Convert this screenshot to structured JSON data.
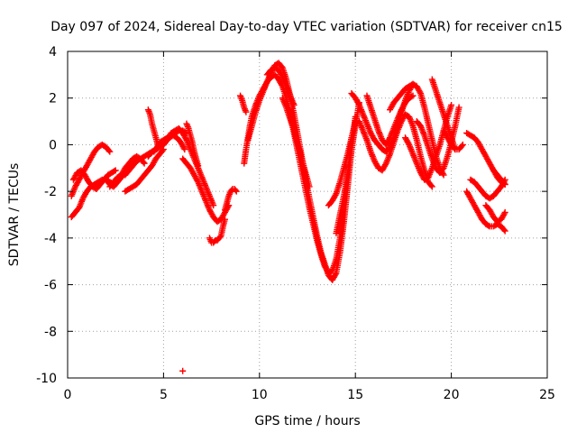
{
  "chart_data": {
    "type": "scatter",
    "title": "Day 097 of 2024, Sidereal Day-to-day VTEC variation (SDTVAR) for receiver cn15",
    "xlabel": "GPS time / hours",
    "ylabel": "SDTVAR / TECUs",
    "xlim": [
      0,
      25
    ],
    "ylim": [
      -10,
      4
    ],
    "xticks": [
      0,
      5,
      10,
      15,
      20,
      25
    ],
    "yticks": [
      -10,
      -8,
      -6,
      -4,
      -2,
      0,
      2,
      4
    ],
    "xtick_labels": [
      "0",
      "5",
      "10",
      "15",
      "20",
      "25"
    ],
    "ytick_labels": [
      "-10",
      "-8",
      "-6",
      "-4",
      "-2",
      "0",
      "2",
      "4"
    ],
    "grid": true,
    "marker": "plus",
    "color": "#ff0000",
    "series": [
      {
        "name": "t0",
        "x": [
          0.2,
          0.4,
          0.6,
          0.8,
          1.0,
          1.2,
          1.4,
          1.6,
          1.8,
          2.0,
          2.2
        ],
        "y": [
          -2.2,
          -1.8,
          -1.5,
          -1.2,
          -0.9,
          -0.6,
          -0.3,
          -0.1,
          0.0,
          -0.1,
          -0.3
        ]
      },
      {
        "name": "t1",
        "x": [
          0.2,
          0.4,
          0.6,
          0.8,
          1.0,
          1.2,
          1.4,
          1.6,
          1.8,
          2.0,
          2.2,
          2.4,
          2.6,
          2.8,
          3.0
        ],
        "y": [
          -3.1,
          -2.9,
          -2.7,
          -2.3,
          -2.0,
          -1.8,
          -1.7,
          -1.6,
          -1.5,
          -1.5,
          -1.6,
          -1.7,
          -1.6,
          -1.4,
          -1.2
        ]
      },
      {
        "name": "t2",
        "x": [
          0.3,
          0.5,
          0.7,
          0.9,
          1.1,
          1.3,
          1.5,
          1.7,
          1.9,
          2.1,
          2.3,
          2.5
        ],
        "y": [
          -1.5,
          -1.2,
          -1.1,
          -1.3,
          -1.6,
          -1.8,
          -1.9,
          -1.7,
          -1.5,
          -1.3,
          -1.2,
          -1.1
        ]
      },
      {
        "name": "t3",
        "x": [
          2.0,
          2.2,
          2.4,
          2.6,
          2.8,
          3.0,
          3.2,
          3.4,
          3.6,
          3.8,
          4.0
        ],
        "y": [
          -1.5,
          -1.7,
          -1.8,
          -1.6,
          -1.3,
          -1.0,
          -0.8,
          -0.6,
          -0.5,
          -0.6,
          -0.8
        ]
      },
      {
        "name": "t4",
        "x": [
          2.2,
          2.4,
          2.6,
          2.8,
          3.0,
          3.2,
          3.4,
          3.6,
          3.8,
          4.0,
          4.2,
          4.4,
          4.6,
          4.8,
          5.0
        ],
        "y": [
          -1.8,
          -1.6,
          -1.4,
          -1.3,
          -1.3,
          -1.1,
          -0.9,
          -0.7,
          -0.6,
          -0.5,
          -0.4,
          -0.3,
          -0.2,
          -0.1,
          0.0
        ]
      },
      {
        "name": "t5",
        "x": [
          3.0,
          3.2,
          3.4,
          3.6,
          3.8,
          4.0,
          4.2,
          4.4,
          4.6,
          4.8,
          5.0
        ],
        "y": [
          -2.0,
          -1.9,
          -1.8,
          -1.7,
          -1.5,
          -1.3,
          -1.1,
          -0.9,
          -0.6,
          -0.4,
          -0.2
        ]
      },
      {
        "name": "t6",
        "x": [
          4.2,
          4.4,
          4.6,
          4.8,
          5.0,
          5.2,
          5.4,
          5.6,
          5.8,
          6.0,
          6.2
        ],
        "y": [
          -0.5,
          -0.3,
          -0.2,
          0.1,
          0.2,
          0.3,
          0.4,
          0.5,
          0.6,
          0.6,
          0.5
        ]
      },
      {
        "name": "t7",
        "x": [
          4.2,
          4.3,
          4.4,
          4.5,
          4.6,
          4.7
        ],
        "y": [
          1.5,
          1.3,
          0.9,
          0.6,
          0.3,
          0.0
        ]
      },
      {
        "name": "t8",
        "x": [
          4.5,
          4.7,
          4.9,
          5.1,
          5.3,
          5.5,
          5.7,
          5.9,
          6.1
        ],
        "y": [
          -0.3,
          -0.1,
          0.1,
          0.2,
          0.3,
          0.4,
          0.3,
          0.1,
          -0.2
        ]
      },
      {
        "name": "t9",
        "x": [
          5.0,
          5.2,
          5.4,
          5.6,
          5.8,
          6.0,
          6.2,
          6.4,
          6.6,
          6.8,
          7.0,
          7.2,
          7.4,
          7.6
        ],
        "y": [
          0.0,
          0.2,
          0.5,
          0.6,
          0.7,
          0.5,
          0.2,
          -0.2,
          -0.6,
          -1.0,
          -1.4,
          -1.8,
          -2.2,
          -2.6
        ]
      },
      {
        "name": "t10",
        "x": [
          6.2,
          6.3,
          6.4,
          6.5,
          6.6,
          6.7,
          6.8
        ],
        "y": [
          0.9,
          0.7,
          0.4,
          0.1,
          -0.3,
          -0.6,
          -0.9
        ]
      },
      {
        "name": "t11",
        "x": [
          6.0,
          6.2,
          6.4,
          6.6,
          6.8,
          7.0,
          7.2,
          7.4,
          7.6,
          7.8,
          8.0,
          8.2,
          8.4
        ],
        "y": [
          -0.6,
          -0.8,
          -1.0,
          -1.3,
          -1.6,
          -2.0,
          -2.4,
          -2.8,
          -3.1,
          -3.3,
          -3.2,
          -2.9,
          -2.6
        ]
      },
      {
        "name": "t12",
        "x": [
          7.4,
          7.5,
          7.6,
          7.7,
          7.8,
          7.9,
          8.0,
          8.1,
          8.2
        ],
        "y": [
          -4.0,
          -4.2,
          -4.2,
          -4.1,
          -4.1,
          -4.0,
          -3.9,
          -3.5,
          -3.2
        ]
      },
      {
        "name": "t13",
        "x": [
          8.2,
          8.3,
          8.4,
          8.5,
          8.6,
          8.7,
          8.8
        ],
        "y": [
          -2.8,
          -2.5,
          -2.2,
          -2.0,
          -1.9,
          -1.9,
          -2.0
        ]
      },
      {
        "name": "t14",
        "x": [
          6.0
        ],
        "y": [
          -9.7
        ]
      },
      {
        "name": "t15",
        "x": [
          9.2,
          9.3,
          9.4,
          9.5,
          9.6,
          9.8,
          10.0,
          10.2,
          10.4,
          10.6,
          10.8,
          11.0,
          11.2,
          11.4,
          11.6,
          11.8,
          12.0,
          12.2,
          12.4,
          12.6,
          12.8,
          13.0,
          13.2,
          13.4,
          13.6,
          13.8,
          14.0,
          14.2,
          14.4,
          14.6,
          14.8
        ],
        "y": [
          -0.8,
          -0.2,
          0.3,
          0.8,
          1.2,
          1.7,
          2.1,
          2.4,
          2.7,
          2.9,
          3.0,
          2.8,
          2.5,
          2.0,
          1.3,
          0.5,
          -0.3,
          -1.1,
          -1.9,
          -2.7,
          -3.4,
          -4.1,
          -4.7,
          -5.2,
          -5.5,
          -5.4,
          -4.9,
          -4.0,
          -2.8,
          -1.3,
          0.3
        ]
      },
      {
        "name": "t16",
        "x": [
          9.4,
          9.6,
          9.8,
          10.0,
          10.2,
          10.4,
          10.6,
          10.8,
          11.0,
          11.2,
          11.4,
          11.6,
          11.8,
          12.0,
          12.2,
          12.4,
          12.6,
          12.8,
          13.0,
          13.2,
          13.4,
          13.6,
          13.8,
          14.0,
          14.2,
          14.4,
          14.6,
          14.8,
          15.0
        ],
        "y": [
          0.2,
          0.8,
          1.4,
          1.9,
          2.3,
          2.7,
          3.1,
          3.4,
          3.5,
          3.3,
          2.8,
          2.1,
          1.3,
          0.4,
          -0.5,
          -1.4,
          -2.3,
          -3.1,
          -3.9,
          -4.6,
          -5.1,
          -5.6,
          -5.8,
          -5.5,
          -4.6,
          -3.3,
          -1.8,
          -0.2,
          1.2
        ]
      },
      {
        "name": "t17",
        "x": [
          9.0,
          9.1,
          9.2,
          9.3
        ],
        "y": [
          2.1,
          1.9,
          1.6,
          1.4
        ]
      },
      {
        "name": "t18",
        "x": [
          10.4,
          10.6,
          10.8,
          11.0,
          11.2,
          11.4,
          11.6,
          11.8
        ],
        "y": [
          3.0,
          3.2,
          3.3,
          3.2,
          2.9,
          2.5,
          2.1,
          1.7
        ]
      },
      {
        "name": "t19",
        "x": [
          11.2,
          11.4,
          11.6,
          11.8,
          12.0,
          12.2,
          12.4,
          12.6
        ],
        "y": [
          2.0,
          1.6,
          1.1,
          0.6,
          0.0,
          -0.6,
          -1.2,
          -1.8
        ]
      },
      {
        "name": "t20",
        "x": [
          11.6,
          11.7,
          11.8,
          11.9,
          12.0
        ],
        "y": [
          1.5,
          1.1,
          0.8,
          0.4,
          0.0
        ]
      },
      {
        "name": "t21",
        "x": [
          13.6,
          13.8,
          14.0,
          14.2,
          14.4,
          14.6,
          14.8,
          15.0
        ],
        "y": [
          -2.6,
          -2.4,
          -2.1,
          -1.6,
          -1.0,
          -0.4,
          0.3,
          1.0
        ]
      },
      {
        "name": "t22",
        "x": [
          14.0,
          14.2,
          14.4,
          14.6,
          14.8,
          15.0,
          15.2
        ],
        "y": [
          -3.8,
          -3.0,
          -2.2,
          -1.2,
          -0.2,
          0.8,
          1.8
        ]
      },
      {
        "name": "t23",
        "x": [
          14.8,
          15.0,
          15.2,
          15.4,
          15.6,
          15.8,
          16.0,
          16.2,
          16.4,
          16.6,
          16.8,
          17.0,
          17.2,
          17.4,
          17.6,
          17.8,
          18.0
        ],
        "y": [
          2.2,
          2.0,
          1.7,
          1.3,
          0.9,
          0.5,
          0.2,
          0.0,
          -0.2,
          -0.3,
          -0.1,
          0.3,
          0.8,
          1.4,
          1.9,
          2.3,
          2.6
        ]
      },
      {
        "name": "t24",
        "x": [
          15.2,
          15.4,
          15.6,
          15.8,
          16.0,
          16.2,
          16.4,
          16.6,
          16.8,
          17.0,
          17.2,
          17.4,
          17.6,
          17.8,
          18.0,
          18.2,
          18.4,
          18.6,
          18.8,
          19.0
        ],
        "y": [
          1.0,
          0.6,
          0.2,
          -0.3,
          -0.7,
          -1.0,
          -1.1,
          -0.8,
          -0.4,
          0.1,
          0.6,
          1.0,
          1.3,
          1.2,
          0.8,
          0.2,
          -0.5,
          -1.1,
          -1.6,
          -1.8
        ]
      },
      {
        "name": "t25",
        "x": [
          15.6,
          15.8,
          16.0,
          16.2,
          16.4,
          16.6,
          16.8,
          17.0,
          17.2,
          17.4,
          17.6,
          17.8,
          18.0
        ],
        "y": [
          2.1,
          1.6,
          1.1,
          0.6,
          0.2,
          0.0,
          0.3,
          0.7,
          1.1,
          1.5,
          1.8,
          2.0,
          2.1
        ]
      },
      {
        "name": "t26",
        "x": [
          16.8,
          17.0,
          17.2,
          17.4,
          17.6,
          17.8,
          18.0,
          18.2,
          18.4,
          18.6,
          18.8,
          19.0,
          19.2,
          19.4,
          19.6
        ],
        "y": [
          1.5,
          1.8,
          2.0,
          2.2,
          2.4,
          2.5,
          2.6,
          2.5,
          2.2,
          1.6,
          0.9,
          0.2,
          -0.5,
          -1.0,
          -1.3
        ]
      },
      {
        "name": "t27",
        "x": [
          17.6,
          17.8,
          18.0,
          18.2,
          18.4,
          18.6,
          18.8,
          19.0,
          19.2,
          19.4,
          19.6,
          19.8,
          20.0
        ],
        "y": [
          0.3,
          0.0,
          -0.4,
          -0.8,
          -1.2,
          -1.5,
          -1.4,
          -1.0,
          -0.5,
          0.0,
          0.6,
          1.2,
          1.7
        ]
      },
      {
        "name": "t28",
        "x": [
          18.2,
          18.4,
          18.6,
          18.8,
          19.0,
          19.2,
          19.4,
          19.6,
          19.8,
          20.0,
          20.2,
          20.4
        ],
        "y": [
          1.0,
          0.8,
          0.4,
          -0.1,
          -0.6,
          -1.0,
          -1.2,
          -1.0,
          -0.5,
          0.1,
          0.8,
          1.6
        ]
      },
      {
        "name": "t29",
        "x": [
          19.0,
          19.2,
          19.4,
          19.6,
          19.8,
          20.0,
          20.2
        ],
        "y": [
          2.8,
          2.3,
          1.8,
          1.3,
          0.8,
          0.3,
          -0.2
        ]
      },
      {
        "name": "t30",
        "x": [
          19.6,
          19.8,
          20.0,
          20.2,
          20.4,
          20.6
        ],
        "y": [
          0.6,
          0.3,
          0.0,
          -0.2,
          -0.2,
          0.0
        ]
      },
      {
        "name": "t31",
        "x": [
          20.8,
          21.0,
          21.2,
          21.4,
          21.6,
          21.8,
          22.0,
          22.2,
          22.4,
          22.6,
          22.8
        ],
        "y": [
          -2.0,
          -2.3,
          -2.6,
          -2.9,
          -3.2,
          -3.4,
          -3.5,
          -3.5,
          -3.4,
          -3.5,
          -3.7
        ]
      },
      {
        "name": "t32",
        "x": [
          20.8,
          21.0,
          21.2,
          21.4,
          21.6,
          21.8,
          22.0,
          22.2,
          22.4,
          22.6,
          22.8
        ],
        "y": [
          0.5,
          0.4,
          0.3,
          0.1,
          -0.2,
          -0.5,
          -0.8,
          -1.1,
          -1.4,
          -1.6,
          -1.7
        ]
      },
      {
        "name": "t33",
        "x": [
          21.0,
          21.2,
          21.4,
          21.6,
          21.8,
          22.0,
          22.2,
          22.4,
          22.6,
          22.8
        ],
        "y": [
          -1.5,
          -1.6,
          -1.8,
          -2.0,
          -2.2,
          -2.3,
          -2.2,
          -2.0,
          -1.8,
          -1.5
        ]
      },
      {
        "name": "t34",
        "x": [
          21.8,
          22.0,
          22.2,
          22.4,
          22.6,
          22.8
        ],
        "y": [
          -2.6,
          -2.8,
          -3.1,
          -3.3,
          -3.2,
          -2.9
        ]
      },
      {
        "name": "t35",
        "x": [
          22.2,
          22.4,
          22.6,
          22.8
        ],
        "y": [
          -1.1,
          -1.3,
          -1.5,
          -1.7
        ]
      }
    ]
  }
}
